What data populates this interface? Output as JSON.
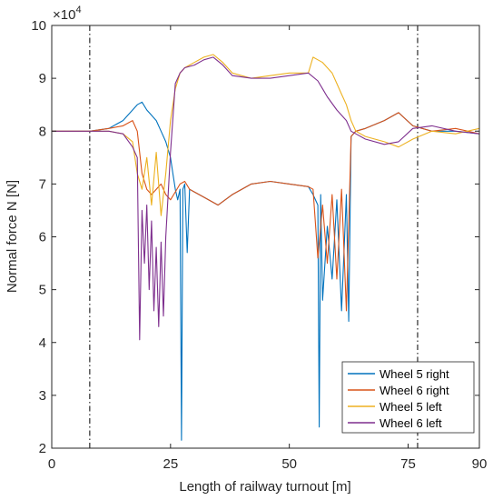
{
  "chart_data": {
    "type": "line",
    "xlabel": "Length of railway turnout  [m]",
    "ylabel": "Normal force N [N]",
    "exponent_label": "×10",
    "exponent_power": "4",
    "xlim": [
      0,
      90
    ],
    "ylim": [
      2,
      10
    ],
    "xticks": [
      0,
      25,
      50,
      75,
      90
    ],
    "xtick_labels": [
      "0",
      "25",
      "50",
      "75",
      "90"
    ],
    "yticks": [
      2,
      3,
      4,
      5,
      6,
      7,
      8,
      9,
      10
    ],
    "ytick_labels": [
      "2",
      "3",
      "4",
      "5",
      "6",
      "7",
      "8",
      "9",
      "10"
    ],
    "vertical_markers_x": [
      8,
      77
    ],
    "grid": false,
    "legend_position": "bottom-right",
    "series": [
      {
        "name": "Wheel 5 right",
        "color": "#0072BD",
        "x": [
          0,
          8,
          12,
          15,
          17,
          18,
          19,
          20,
          21,
          22,
          23,
          24,
          25,
          25.5,
          26,
          26.5,
          27,
          27.3,
          27.6,
          28,
          28.5,
          29,
          30,
          32,
          35,
          38,
          42,
          46,
          50,
          54,
          55,
          56,
          56.3,
          56.6,
          57,
          58,
          59,
          60,
          61,
          62,
          62.5,
          63,
          64,
          66,
          70,
          73,
          76,
          80,
          85,
          90
        ],
        "y": [
          8.0,
          8.0,
          8.05,
          8.2,
          8.4,
          8.5,
          8.55,
          8.4,
          8.3,
          8.2,
          8.0,
          7.8,
          7.5,
          7.2,
          6.9,
          6.7,
          6.9,
          2.15,
          6.9,
          7.0,
          5.7,
          6.9,
          6.85,
          6.75,
          6.6,
          6.8,
          7.0,
          7.05,
          7.0,
          6.95,
          6.8,
          6.6,
          2.4,
          6.8,
          4.8,
          6.2,
          5.2,
          6.7,
          4.6,
          6.8,
          4.4,
          7.9,
          8.0,
          8.05,
          8.2,
          8.35,
          8.1,
          8.0,
          8.0,
          7.95
        ]
      },
      {
        "name": "Wheel 6 right",
        "color": "#D95319",
        "x": [
          0,
          8,
          12,
          15,
          17,
          18,
          19,
          20,
          21,
          22,
          23,
          24,
          25,
          26,
          27,
          28,
          29,
          30,
          32,
          35,
          38,
          42,
          46,
          50,
          54,
          55,
          56,
          57,
          58,
          59,
          60,
          61,
          62,
          63,
          64,
          66,
          70,
          73,
          76,
          80,
          85,
          90
        ],
        "y": [
          8.0,
          8.0,
          8.05,
          8.1,
          8.2,
          8.0,
          7.2,
          6.9,
          6.8,
          6.9,
          7.0,
          6.8,
          6.7,
          6.85,
          7.0,
          7.05,
          6.9,
          6.85,
          6.75,
          6.6,
          6.8,
          7.0,
          7.05,
          7.0,
          6.95,
          6.9,
          5.6,
          6.6,
          5.5,
          6.8,
          5.2,
          6.9,
          4.6,
          7.9,
          8.0,
          8.05,
          8.2,
          8.35,
          8.1,
          8.0,
          8.05,
          7.95
        ]
      },
      {
        "name": "Wheel 5 left",
        "color": "#EDB120",
        "x": [
          0,
          8,
          12,
          15,
          17,
          18,
          19,
          20,
          21,
          22,
          23,
          24,
          25,
          26,
          27,
          28,
          30,
          32,
          34,
          36,
          38,
          42,
          46,
          50,
          54,
          55,
          56,
          57,
          58,
          59,
          60,
          61,
          62,
          63,
          64,
          66,
          70,
          73,
          76,
          80,
          85,
          90
        ],
        "y": [
          8.0,
          8.0,
          8.0,
          7.95,
          7.8,
          7.2,
          6.9,
          7.5,
          6.6,
          7.6,
          6.4,
          7.2,
          8.2,
          8.8,
          9.1,
          9.2,
          9.3,
          9.4,
          9.45,
          9.3,
          9.1,
          9.0,
          9.05,
          9.1,
          9.1,
          9.4,
          9.35,
          9.3,
          9.2,
          9.1,
          8.9,
          8.7,
          8.5,
          8.2,
          8.0,
          7.9,
          7.8,
          7.7,
          7.85,
          8.0,
          7.95,
          8.05
        ]
      },
      {
        "name": "Wheel 6 left",
        "color": "#7E2F8E",
        "x": [
          0,
          8,
          12,
          15,
          17,
          18,
          18.5,
          19,
          19.5,
          20,
          20.5,
          21,
          21.5,
          22,
          22.5,
          23,
          23.5,
          24,
          25,
          26,
          27,
          28,
          30,
          32,
          34,
          36,
          38,
          42,
          46,
          50,
          54,
          56,
          57,
          58,
          60,
          62,
          63,
          64,
          66,
          70,
          73,
          76,
          80,
          85,
          90
        ],
        "y": [
          8.0,
          8.0,
          8.0,
          7.95,
          7.7,
          7.5,
          4.05,
          6.5,
          5.5,
          6.6,
          5.0,
          6.3,
          4.6,
          5.8,
          4.3,
          5.9,
          4.5,
          6.0,
          7.6,
          8.9,
          9.1,
          9.2,
          9.25,
          9.35,
          9.4,
          9.25,
          9.05,
          9.0,
          9.0,
          9.05,
          9.1,
          8.95,
          8.8,
          8.65,
          8.4,
          8.2,
          8.0,
          7.95,
          7.85,
          7.75,
          7.8,
          8.05,
          8.1,
          8.0,
          7.95
        ]
      }
    ]
  }
}
